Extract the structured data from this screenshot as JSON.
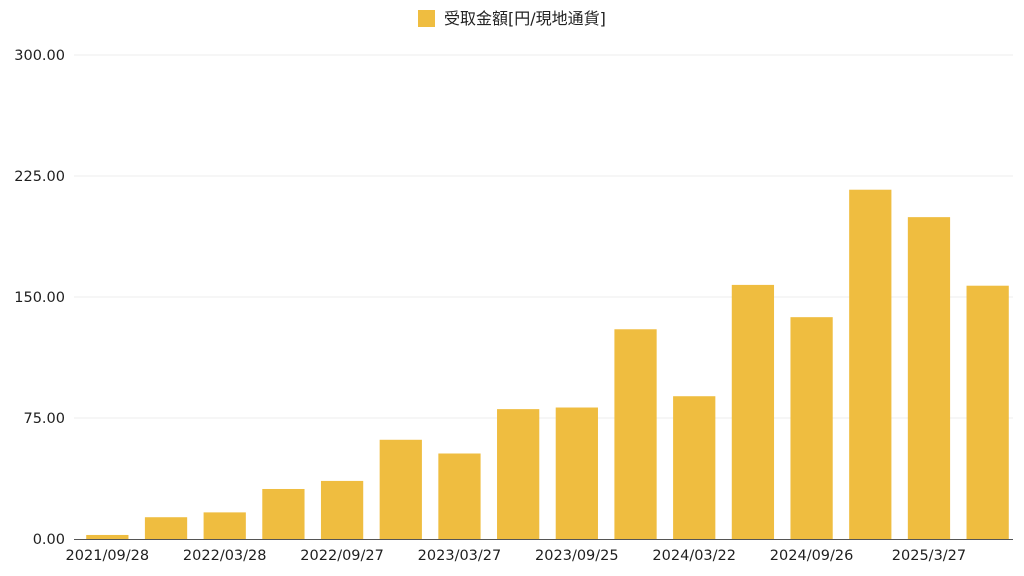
{
  "chart_data": {
    "type": "bar",
    "title": "",
    "xlabel": "",
    "ylabel": "",
    "ylim": [
      0,
      300
    ],
    "grid": true,
    "legend_position": "top-center",
    "y_ticks": [
      "0.00",
      "75.00",
      "150.00",
      "225.00",
      "300.00"
    ],
    "categories": [
      "2021/09/28",
      "",
      "2022/03/28",
      "",
      "2022/09/27",
      "",
      "2023/03/27",
      "",
      "2023/09/25",
      "",
      "2024/03/22",
      "",
      "2024/09/26",
      "",
      "2025/3/27",
      ""
    ],
    "series": [
      {
        "name": "受取金額[円/現地通貨]",
        "color": "#EFBD40",
        "values": [
          2.5,
          13.5,
          16.5,
          31,
          36,
          61.5,
          53,
          80.5,
          81.5,
          130,
          88.5,
          157.5,
          137.5,
          216.5,
          199.5,
          157
        ]
      }
    ]
  },
  "style": {
    "gridline_color": "#ececec",
    "axis_color": "#555555",
    "text_color": "#1f1f1f"
  }
}
